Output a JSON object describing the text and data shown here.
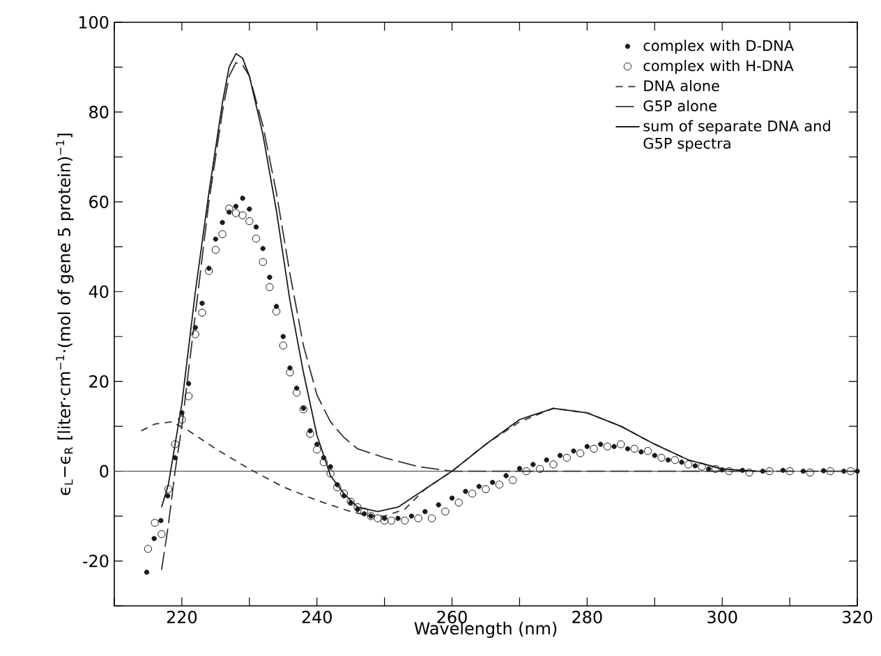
{
  "chart_data": {
    "type": "line",
    "xlabel": "Wavelength (nm)",
    "ylabel": "ϵ$_{L}$−ϵ$_{R}$ [liter·cm$^{−1}$·(mol of gene 5 protein)$^{−1}$]",
    "xlim": [
      210,
      320
    ],
    "ylim": [
      -30,
      100
    ],
    "xticks": [
      {
        "value": 210,
        "label": null
      },
      220,
      {
        "value": 230,
        "label": null
      },
      240,
      {
        "value": 250,
        "label": null
      },
      260,
      {
        "value": 270,
        "label": null
      },
      280,
      {
        "value": 290,
        "label": null
      },
      300,
      {
        "value": 310,
        "label": null
      },
      320
    ],
    "yticks": [
      {
        "value": -30,
        "label": null
      },
      -20,
      {
        "value": -10,
        "label": null
      },
      0,
      {
        "value": 10,
        "label": null
      },
      20,
      {
        "value": 30,
        "label": null
      },
      40,
      {
        "value": 50,
        "label": null
      },
      60,
      {
        "value": 70,
        "label": null
      },
      80,
      {
        "value": 90,
        "label": null
      },
      100
    ],
    "legend": "top right",
    "ref_lines": [
      {
        "axis": "y",
        "value": 0,
        "color": "#555555"
      }
    ],
    "series": [
      {
        "name": "complex with D-DNA",
        "type": "scatter",
        "marker": "circle",
        "color": "#1a1a1a",
        "x": [
          214.8,
          215.9,
          216.9,
          217.9,
          219,
          220,
          221,
          222,
          223,
          224,
          225,
          226,
          227,
          228,
          229,
          230,
          231,
          232,
          233,
          234,
          235,
          236,
          237,
          238,
          239,
          240,
          241,
          242,
          243,
          244,
          245,
          246,
          247,
          248,
          250,
          252,
          254,
          256,
          258,
          260,
          262,
          264,
          266,
          268,
          270,
          272,
          274,
          276,
          278,
          280,
          282,
          284,
          286,
          288,
          290,
          292,
          294,
          296,
          298,
          300,
          303,
          306,
          309,
          312,
          315,
          318,
          320
        ],
        "values": [
          -22.5,
          -15,
          -11,
          -5.5,
          3,
          13,
          19.5,
          32,
          37.4,
          45.2,
          51.7,
          55.4,
          57.7,
          59,
          60.8,
          58.4,
          54.4,
          49.6,
          43.2,
          36.7,
          30,
          23,
          18.5,
          14,
          9,
          6,
          3,
          1,
          -3,
          -5.5,
          -7,
          -8.5,
          -9.5,
          -10,
          -10.5,
          -10.5,
          -10,
          -9,
          -7.5,
          -6,
          -4.5,
          -3.4,
          -2.5,
          -1,
          0.6,
          1.5,
          2.5,
          3.5,
          4.5,
          5.5,
          6,
          5.5,
          5,
          4.3,
          3.5,
          2.5,
          2,
          1.2,
          0.5,
          0.3,
          0.2,
          0,
          0.2,
          0,
          0.1,
          0,
          0
        ]
      },
      {
        "name": "complex with H-DNA",
        "type": "scatter",
        "marker": "circle",
        "color": "#1a1a1a",
        "x": [
          215,
          216,
          217,
          218,
          219,
          220,
          221,
          222,
          223,
          224,
          225,
          226,
          227,
          228,
          229,
          230,
          231,
          232,
          233,
          234,
          235,
          236,
          237,
          238,
          239,
          240,
          241,
          242,
          243,
          244,
          245,
          246,
          247,
          248,
          249,
          250,
          251,
          253,
          255,
          257,
          259,
          261,
          263,
          265,
          267,
          269,
          271,
          273,
          275,
          277,
          279,
          281,
          283,
          285,
          287,
          289,
          291,
          293,
          295,
          297,
          299,
          301,
          304,
          307,
          310,
          313,
          316,
          319
        ],
        "values": [
          -17.3,
          -11.5,
          -14,
          -4,
          6,
          11.5,
          16.7,
          30.5,
          35.3,
          44.6,
          49.3,
          52.8,
          58.5,
          57.5,
          57,
          55.7,
          51.8,
          46.6,
          41,
          35.6,
          28,
          22,
          17.5,
          13.8,
          8.3,
          4.8,
          2,
          -0.5,
          -3.6,
          -5,
          -6.8,
          -8,
          -9,
          -10,
          -10.5,
          -11,
          -11,
          -11,
          -10.5,
          -10.5,
          -9,
          -7,
          -5,
          -4,
          -3,
          -2,
          0,
          0.5,
          1.5,
          3,
          4,
          5,
          5.5,
          6,
          5,
          4.5,
          3,
          2.5,
          1.5,
          1,
          0.5,
          0,
          -0.3,
          0,
          0,
          -0.3,
          0,
          0
        ]
      },
      {
        "name": "DNA alone",
        "line_style": "dashed",
        "color": "#333333",
        "x": [
          214,
          216,
          218.5,
          221,
          225,
          230,
          235,
          240,
          245,
          248,
          250,
          253,
          256,
          260,
          265,
          270,
          275,
          280,
          285,
          290,
          295,
          300,
          305
        ],
        "values": [
          9,
          10.5,
          11,
          9,
          5,
          0.5,
          -3.5,
          -6.5,
          -9,
          -10,
          -10,
          -8.5,
          -4,
          0,
          6,
          11,
          14,
          13,
          10,
          6,
          2.5,
          0.5,
          0
        ]
      },
      {
        "name": "G5P alone",
        "line_style": "dashed",
        "color": "#333333",
        "x": [
          217,
          218,
          219,
          220,
          222,
          224,
          226,
          227,
          228,
          229,
          230,
          232,
          234,
          236,
          238,
          240,
          242,
          244,
          246,
          250,
          255,
          260,
          320
        ],
        "values": [
          -22,
          -12,
          0,
          10,
          35,
          60,
          80,
          88,
          91,
          90.5,
          88,
          77,
          62,
          44,
          28,
          17,
          11,
          7.5,
          5,
          3,
          1,
          0,
          0
        ]
      },
      {
        "name": "sum of separate DNA and G5P spectra",
        "line_style": "solid",
        "color": "#1a1a1a",
        "x": [
          217,
          218,
          220,
          222,
          224,
          226,
          227,
          228,
          229,
          230,
          232,
          234,
          236,
          238,
          240,
          242,
          244,
          246,
          249,
          252,
          256,
          260,
          265,
          270,
          275,
          280,
          285,
          290,
          295,
          300,
          305
        ],
        "values": [
          -8,
          -3,
          15,
          40,
          62,
          82,
          90,
          93,
          92,
          88,
          75,
          58,
          38,
          22,
          8,
          -1,
          -5,
          -8,
          -9,
          -8,
          -4,
          0,
          6,
          11.5,
          14,
          13,
          10,
          6,
          2.5,
          0.5,
          0
        ]
      }
    ]
  }
}
